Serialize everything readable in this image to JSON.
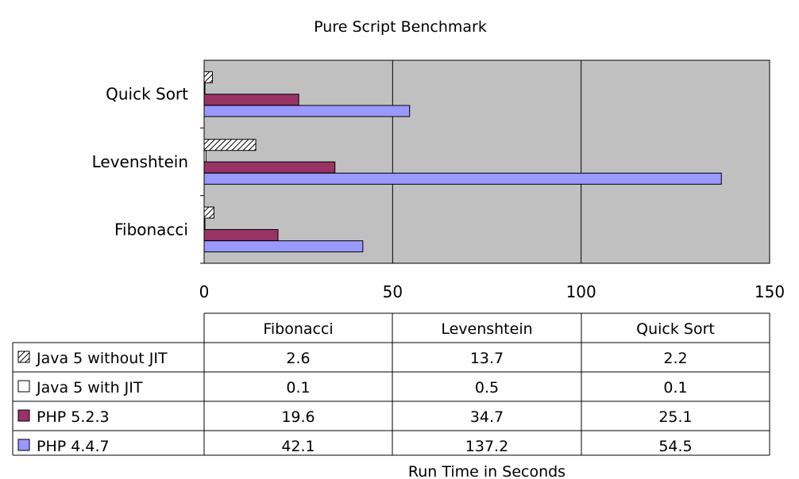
{
  "chart_data": {
    "type": "bar",
    "orientation": "horizontal",
    "title": "Pure Script Benchmark",
    "xlabel": "Run Time in Seconds",
    "ylabel": "",
    "categories": [
      "Fibonacci",
      "Levenshtein",
      "Quick Sort"
    ],
    "xlim": [
      0,
      150
    ],
    "ticks": [
      0,
      50,
      100,
      150
    ],
    "grid": true,
    "plot_background": "#c0c0c0",
    "legend": "data-table below chart",
    "series": [
      {
        "name": "Java 5 without JIT",
        "values": [
          2.6,
          13.7,
          2.2
        ],
        "pattern": "hatch",
        "color": "#ffffff"
      },
      {
        "name": "Java 5 with JIT",
        "values": [
          0.1,
          0.5,
          0.1
        ],
        "color": "#ffffff"
      },
      {
        "name": "PHP 5.2.3",
        "values": [
          19.6,
          34.7,
          25.1
        ],
        "color": "#993366"
      },
      {
        "name": "PHP 4.4.7",
        "values": [
          42.1,
          137.2,
          54.5
        ],
        "color": "#9999ff"
      }
    ]
  }
}
